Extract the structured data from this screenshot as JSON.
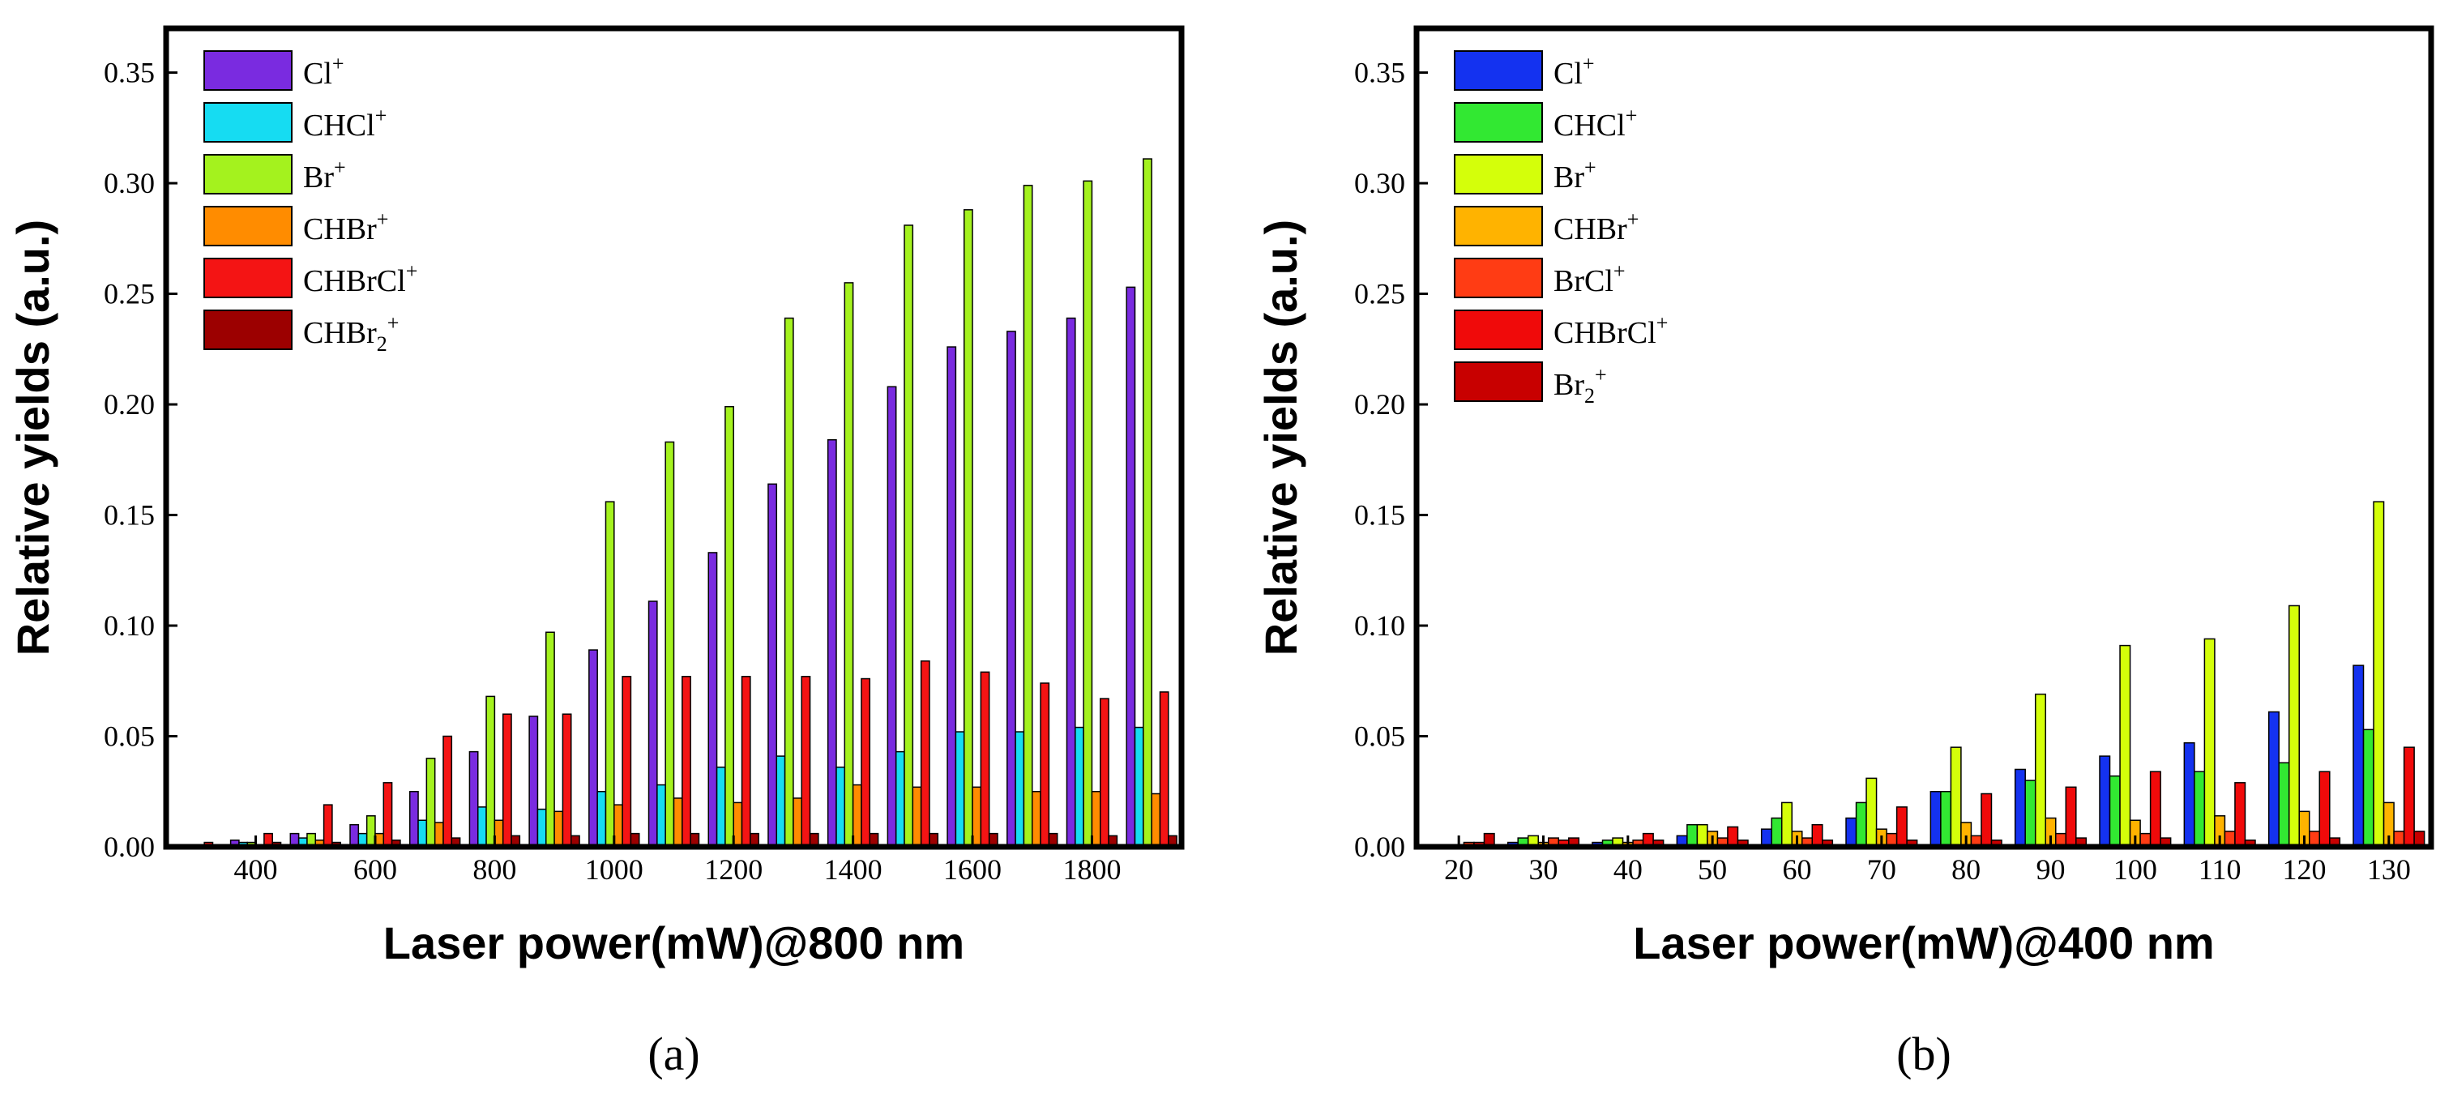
{
  "chart_data": [
    {
      "type": "bar",
      "panel_label": "(a)",
      "xlabel": "Laser power(mW)@800 nm",
      "ylabel": "Relative yields (a.u.)",
      "ylim": [
        0,
        0.37
      ],
      "yticks": [
        "0.00",
        "0.05",
        "0.10",
        "0.15",
        "0.20",
        "0.25",
        "0.30",
        "0.35"
      ],
      "x": [
        300,
        400,
        500,
        600,
        700,
        800,
        900,
        1000,
        1100,
        1200,
        1300,
        1400,
        1500,
        1600,
        1700,
        1800,
        1900
      ],
      "xticks": [
        400,
        600,
        800,
        1000,
        1200,
        1400,
        1600,
        1800
      ],
      "legend_position": "top-left",
      "series": [
        {
          "name": "Cl",
          "sup": "+",
          "color": "#7a2be0",
          "values": [
            0.001,
            0.003,
            0.006,
            0.01,
            0.025,
            0.043,
            0.059,
            0.089,
            0.111,
            0.133,
            0.164,
            0.184,
            0.208,
            0.226,
            0.233,
            0.239,
            0.253
          ]
        },
        {
          "name": "CHCl",
          "sup": "+",
          "color": "#16dcf2",
          "values": [
            0.001,
            0.002,
            0.004,
            0.006,
            0.012,
            0.018,
            0.017,
            0.025,
            0.028,
            0.036,
            0.041,
            0.036,
            0.043,
            0.052,
            0.052,
            0.054,
            0.054
          ]
        },
        {
          "name": "Br",
          "sup": "+",
          "color": "#a4f21e",
          "values": [
            0.001,
            0.002,
            0.006,
            0.014,
            0.04,
            0.068,
            0.097,
            0.156,
            0.183,
            0.199,
            0.239,
            0.255,
            0.281,
            0.288,
            0.299,
            0.301,
            0.311
          ]
        },
        {
          "name": "CHBr",
          "sup": "+",
          "color": "#ff8c00",
          "values": [
            0.001,
            0.001,
            0.003,
            0.006,
            0.011,
            0.012,
            0.016,
            0.019,
            0.022,
            0.02,
            0.022,
            0.028,
            0.027,
            0.027,
            0.025,
            0.025,
            0.024
          ]
        },
        {
          "name": "CHBrCl",
          "sup": "+",
          "color": "#f41414",
          "values": [
            0.002,
            0.006,
            0.019,
            0.029,
            0.05,
            0.06,
            0.06,
            0.077,
            0.077,
            0.077,
            0.077,
            0.076,
            0.084,
            0.079,
            0.074,
            0.067,
            0.07
          ]
        },
        {
          "name": "CHBr",
          "sub": "2",
          "sup": "+",
          "color": "#9c0000",
          "values": [
            0.001,
            0.002,
            0.002,
            0.003,
            0.004,
            0.005,
            0.005,
            0.006,
            0.006,
            0.006,
            0.006,
            0.006,
            0.006,
            0.006,
            0.006,
            0.005,
            0.005
          ]
        }
      ]
    },
    {
      "type": "bar",
      "panel_label": "(b)",
      "xlabel": "Laser power(mW)@400 nm",
      "ylabel": "Relative yields (a.u.)",
      "ylim": [
        0,
        0.37
      ],
      "yticks": [
        "0.00",
        "0.05",
        "0.10",
        "0.15",
        "0.20",
        "0.25",
        "0.30",
        "0.35"
      ],
      "x": [
        20,
        30,
        40,
        50,
        60,
        70,
        80,
        90,
        100,
        110,
        120,
        130
      ],
      "xticks": [
        20,
        30,
        40,
        50,
        60,
        70,
        80,
        90,
        100,
        110,
        120,
        130
      ],
      "legend_position": "top-left",
      "series": [
        {
          "name": "Cl",
          "sup": "+",
          "color": "#1432f0",
          "values": [
            0.001,
            0.002,
            0.002,
            0.005,
            0.008,
            0.013,
            0.025,
            0.035,
            0.041,
            0.047,
            0.061,
            0.082
          ]
        },
        {
          "name": "CHCl",
          "sup": "+",
          "color": "#32e832",
          "values": [
            0.001,
            0.004,
            0.003,
            0.01,
            0.013,
            0.02,
            0.025,
            0.03,
            0.032,
            0.034,
            0.038,
            0.053
          ]
        },
        {
          "name": "Br",
          "sup": "+",
          "color": "#d4ff0a",
          "values": [
            0.001,
            0.005,
            0.004,
            0.01,
            0.02,
            0.031,
            0.045,
            0.069,
            0.091,
            0.094,
            0.109,
            0.156
          ]
        },
        {
          "name": "CHBr",
          "sup": "+",
          "color": "#ffb300",
          "values": [
            0.001,
            0.002,
            0.002,
            0.007,
            0.007,
            0.008,
            0.011,
            0.013,
            0.012,
            0.014,
            0.016,
            0.02
          ]
        },
        {
          "name": "BrCl",
          "sup": "+",
          "color": "#ff3c14",
          "values": [
            0.002,
            0.004,
            0.003,
            0.004,
            0.004,
            0.006,
            0.005,
            0.006,
            0.006,
            0.007,
            0.007,
            0.007
          ]
        },
        {
          "name": "CHBrCl",
          "sup": "+",
          "color": "#f00a0a",
          "values": [
            0.002,
            0.003,
            0.006,
            0.009,
            0.01,
            0.018,
            0.024,
            0.027,
            0.034,
            0.029,
            0.034,
            0.045
          ]
        },
        {
          "name": "Br",
          "sub": "2",
          "sup": "+",
          "color": "#c80000",
          "values": [
            0.006,
            0.004,
            0.003,
            0.003,
            0.003,
            0.003,
            0.003,
            0.004,
            0.004,
            0.003,
            0.004,
            0.007
          ]
        }
      ]
    }
  ]
}
